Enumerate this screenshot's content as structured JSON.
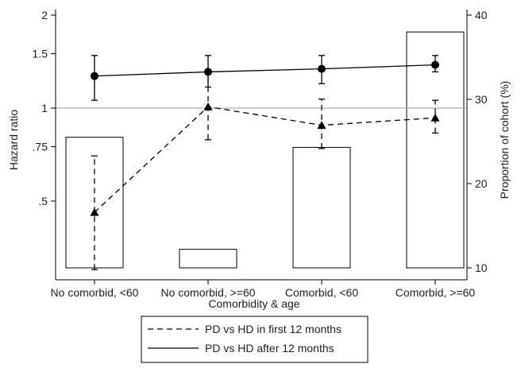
{
  "chart_data": {
    "type": "line",
    "xlabel": "Comorbidity & age",
    "ylabel": "Hazard ratio",
    "y2label": "Proportion of cohort (%)",
    "categories": [
      "No comorbid, <60",
      "No comorbid, >=60",
      "Comorbid, <60",
      "Comorbid, >=60"
    ],
    "y_scale": "log",
    "ylim": [
      0.3,
      2.05
    ],
    "yticks": [
      0.5,
      0.75,
      1,
      1.5,
      2
    ],
    "ytick_labels": [
      ".5",
      ".75",
      "1",
      "1.5",
      "2"
    ],
    "reference_line_y": 1,
    "y2lim": [
      9,
      40
    ],
    "y2ticks": [
      10,
      20,
      30,
      40
    ],
    "y2tick_labels": [
      "10",
      "20",
      "30",
      "40"
    ],
    "grid": false,
    "legend_position": "bottom",
    "series": [
      {
        "name": "PD vs HD in first 12 months",
        "style": "dashed",
        "marker": "triangle",
        "values": [
          0.46,
          1.01,
          0.88,
          0.93
        ],
        "ci_low": [
          0.3,
          0.79,
          0.74,
          0.83
        ],
        "ci_high": [
          0.7,
          1.3,
          1.07,
          1.06
        ]
      },
      {
        "name": "PD vs HD after 12 months",
        "style": "solid",
        "marker": "circle",
        "values": [
          1.27,
          1.31,
          1.34,
          1.38
        ],
        "ci_low": [
          1.06,
          1.17,
          1.2,
          1.31
        ],
        "ci_high": [
          1.48,
          1.48,
          1.48,
          1.48
        ]
      }
    ],
    "bars": {
      "axis": "right",
      "values": [
        25.5,
        12.2,
        24.3,
        38
      ]
    },
    "colors": {
      "lines": "#000000",
      "reference": "#999999",
      "bars_fill": "#ffffff",
      "bars_edge": "#000000"
    }
  }
}
